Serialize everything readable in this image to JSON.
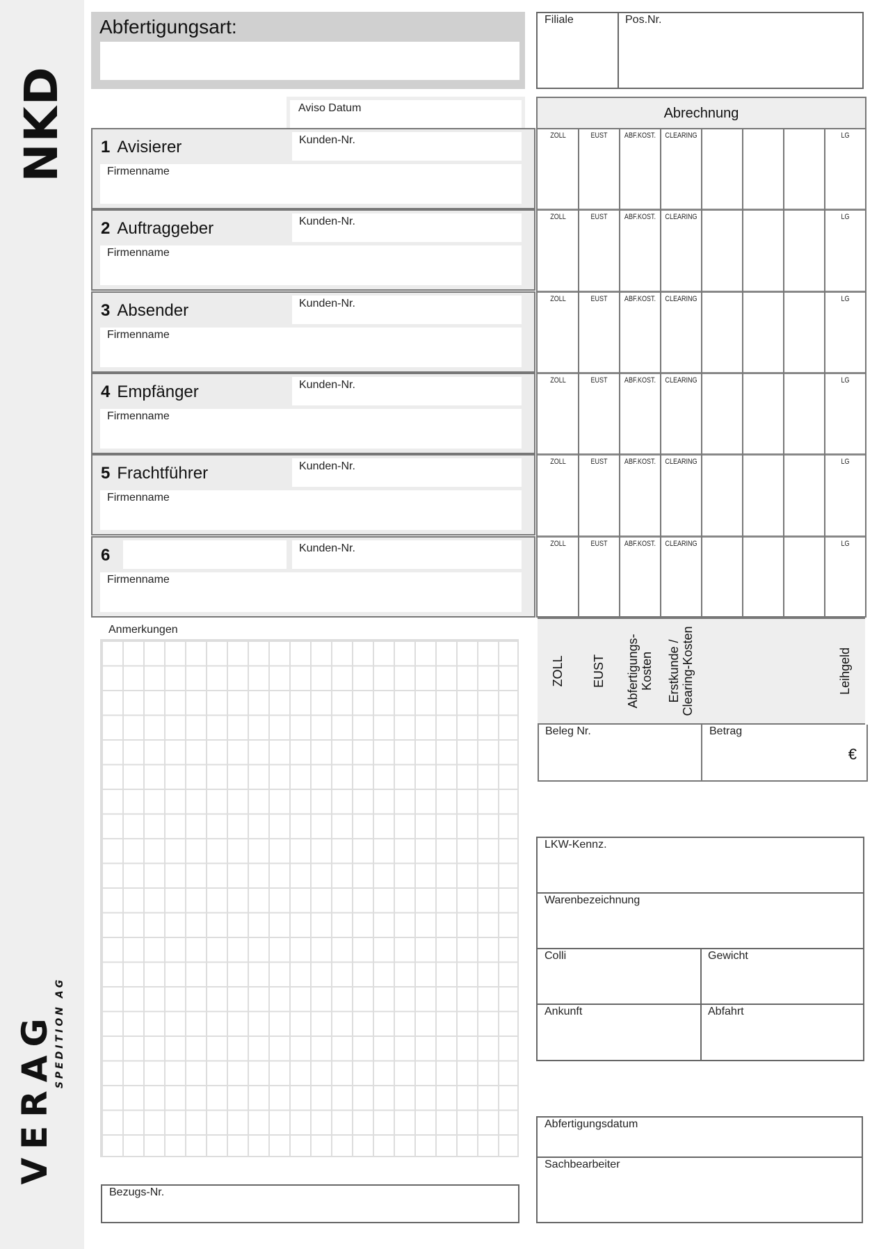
{
  "logos": {
    "top": "NKD",
    "bottom_main": "VERAG",
    "bottom_sub": "SPEDITION AG"
  },
  "header": {
    "abfertigungsart": "Abfertigungsart:",
    "filiale": "Filiale",
    "pos_nr": "Pos.Nr.",
    "aviso_datum": "Aviso Datum"
  },
  "abrechnung": {
    "title": "Abrechnung",
    "columns": [
      "ZOLL",
      "EUST",
      "ABF.KOST.",
      "CLEARING",
      "",
      "",
      "",
      "LG"
    ],
    "footer_columns": [
      "ZOLL",
      "EUST",
      "Abfertigungs-\nKosten",
      "Erstkunde /\nClearing-Kosten",
      "",
      "",
      "",
      "Leihgeld"
    ],
    "beleg_nr": "Beleg Nr.",
    "betrag": "Betrag",
    "currency": "€"
  },
  "sections": [
    {
      "num": "1",
      "title": "Avisierer",
      "kunden_nr": "Kunden-Nr.",
      "firmenname": "Firmenname"
    },
    {
      "num": "2",
      "title": "Auftraggeber",
      "kunden_nr": "Kunden-Nr.",
      "firmenname": "Firmenname"
    },
    {
      "num": "3",
      "title": "Absender",
      "kunden_nr": "Kunden-Nr.",
      "firmenname": "Firmenname"
    },
    {
      "num": "4",
      "title": "Empfänger",
      "kunden_nr": "Kunden-Nr.",
      "firmenname": "Firmenname"
    },
    {
      "num": "5",
      "title": "Frachtführer",
      "kunden_nr": "Kunden-Nr.",
      "firmenname": "Firmenname"
    },
    {
      "num": "6",
      "title": "",
      "kunden_nr": "Kunden-Nr.",
      "firmenname": "Firmenname"
    }
  ],
  "anmerkungen": "Anmerkungen",
  "bezugs_nr": "Bezugs-Nr.",
  "transport": {
    "lkw": "LKW-Kennz.",
    "ware": "Warenbezeichnung",
    "colli": "Colli",
    "gewicht": "Gewicht",
    "ankunft": "Ankunft",
    "abfahrt": "Abfahrt"
  },
  "abschluss": {
    "datum": "Abfertigungsdatum",
    "sachbearbeiter": "Sachbearbeiter"
  }
}
